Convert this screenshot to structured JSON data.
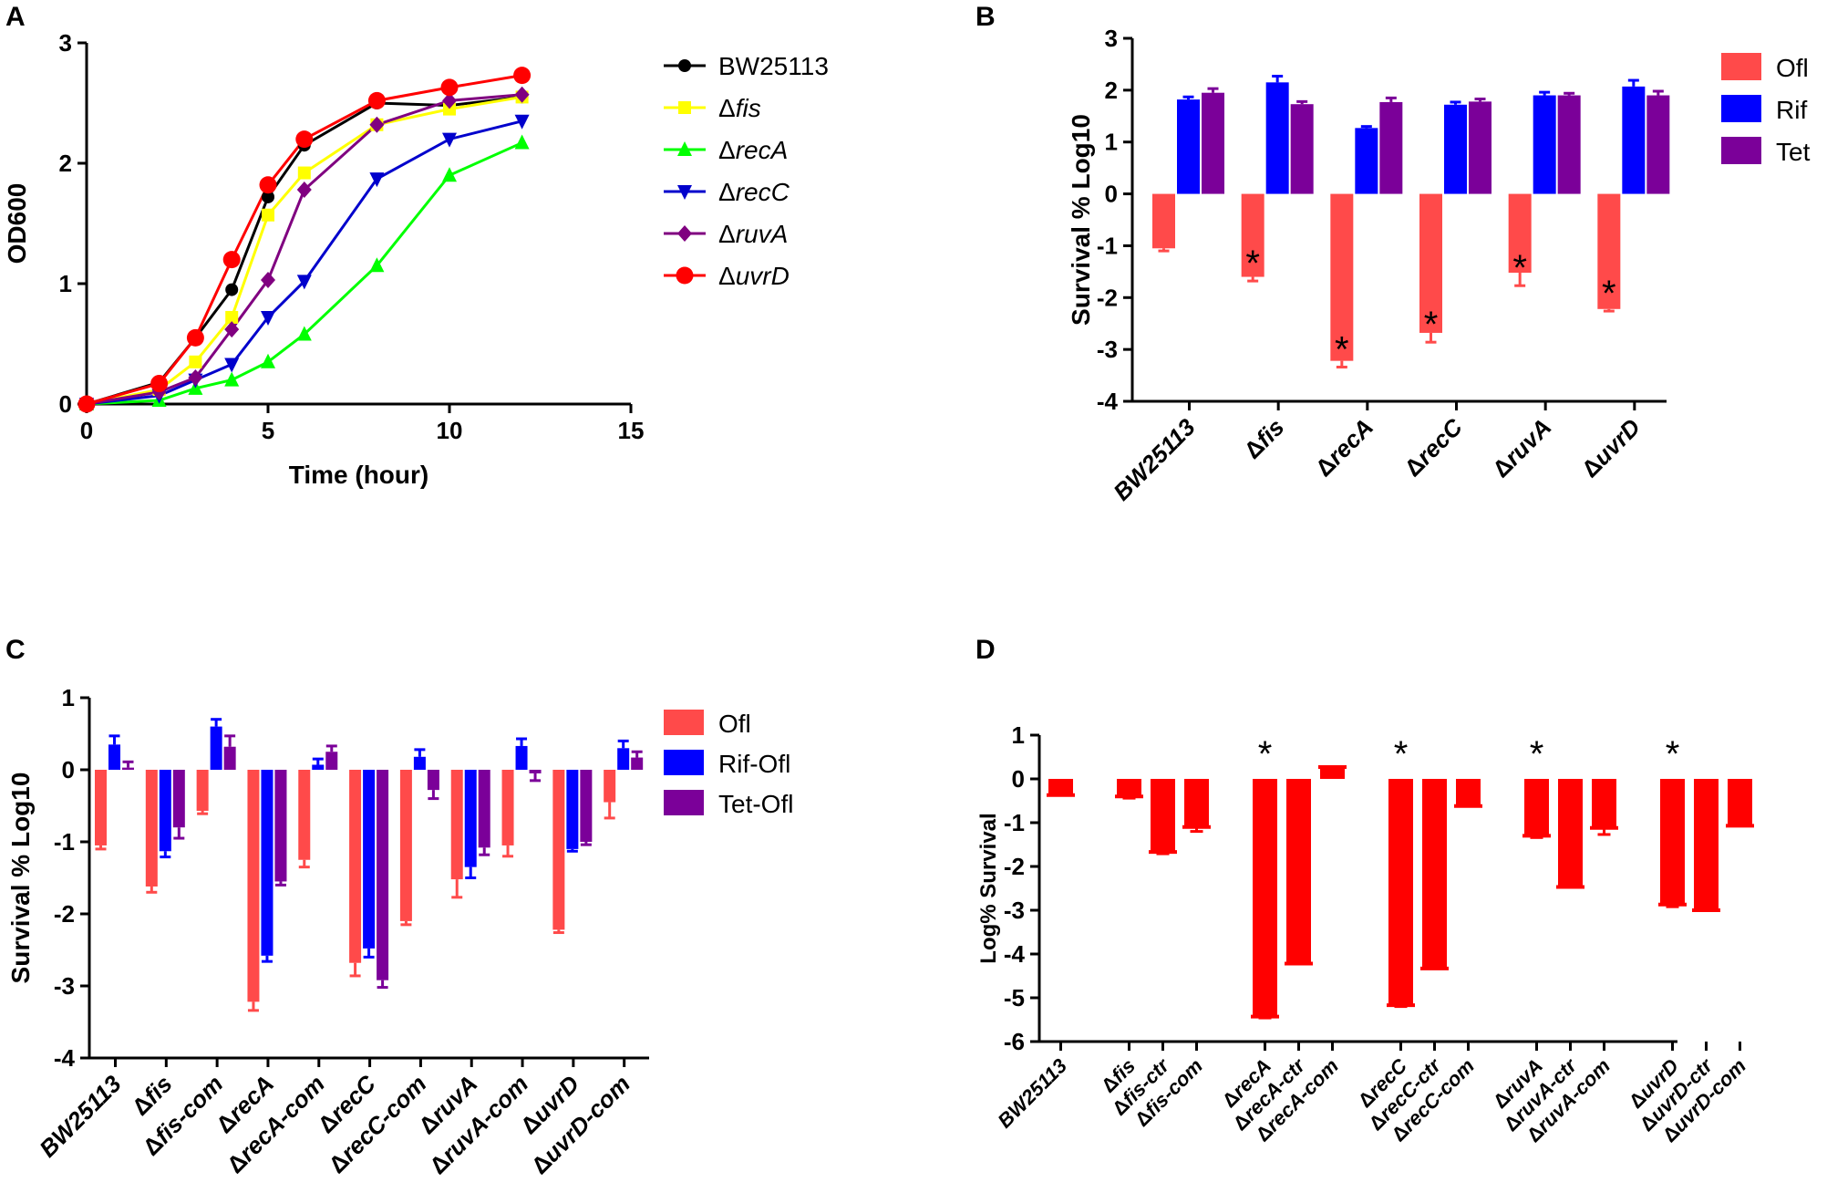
{
  "chart_data": [
    {
      "panel": "A",
      "type": "line",
      "xlabel": "Time (hour)",
      "ylabel": "OD600",
      "xlim": [
        0,
        15
      ],
      "ylim": [
        0,
        3
      ],
      "xticks": [
        "0",
        "5",
        "10",
        "15"
      ],
      "yticks": [
        "0",
        "1",
        "2",
        "3"
      ],
      "series": [
        {
          "name": "BW25113",
          "italic": false,
          "color": "#000000",
          "marker": "circle",
          "x": [
            0,
            2,
            3,
            4,
            5,
            6,
            8,
            10,
            12
          ],
          "y": [
            0,
            0.18,
            0.55,
            0.95,
            1.72,
            2.15,
            2.5,
            2.48,
            2.55
          ]
        },
        {
          "name": "Δfis",
          "italic": true,
          "color": "#ffff00",
          "marker": "square",
          "x": [
            0,
            2,
            3,
            4,
            5,
            6,
            8,
            10,
            12
          ],
          "y": [
            0,
            0.12,
            0.35,
            0.72,
            1.57,
            1.92,
            2.32,
            2.45,
            2.55
          ]
        },
        {
          "name": "ΔrecA",
          "italic": true,
          "color": "#00ff00",
          "marker": "triangle-up",
          "x": [
            0,
            2,
            3,
            4,
            5,
            6,
            8,
            10,
            12
          ],
          "y": [
            0,
            0.03,
            0.13,
            0.2,
            0.35,
            0.58,
            1.15,
            1.9,
            2.17
          ]
        },
        {
          "name": "ΔrecC",
          "italic": true,
          "color": "#0000cc",
          "marker": "triangle-down",
          "x": [
            0,
            2,
            3,
            4,
            5,
            6,
            8,
            10,
            12
          ],
          "y": [
            0,
            0.07,
            0.2,
            0.33,
            0.72,
            1.02,
            1.87,
            2.2,
            2.35
          ]
        },
        {
          "name": "ΔruvA",
          "italic": true,
          "color": "#800080",
          "marker": "diamond",
          "x": [
            0,
            2,
            3,
            4,
            5,
            6,
            8,
            10,
            12
          ],
          "y": [
            0,
            0.1,
            0.22,
            0.62,
            1.03,
            1.78,
            2.32,
            2.52,
            2.57
          ]
        },
        {
          "name": "ΔuvrD",
          "italic": true,
          "color": "#ff0000",
          "marker": "circle-large",
          "x": [
            0,
            2,
            3,
            4,
            5,
            6,
            8,
            10,
            12
          ],
          "y": [
            0,
            0.17,
            0.55,
            1.2,
            1.82,
            2.2,
            2.52,
            2.63,
            2.73
          ]
        }
      ]
    },
    {
      "panel": "B",
      "type": "bar",
      "ylabel": "Survival  % Log10",
      "ylim": [
        -4,
        3
      ],
      "yticks": [
        "-4",
        "-3",
        "-2",
        "-1",
        "0",
        "1",
        "2",
        "3"
      ],
      "categories": [
        "BW25113",
        "Δfis",
        "ΔrecA",
        "ΔrecC",
        "ΔruvA",
        "ΔuvrD"
      ],
      "series": [
        {
          "name": "Ofl",
          "color": "#ff4a4a",
          "values": [
            -1.05,
            -1.6,
            -3.22,
            -2.68,
            -1.52,
            -2.22
          ],
          "errors": [
            0.05,
            0.08,
            0.12,
            0.18,
            0.25,
            0.04
          ]
        },
        {
          "name": "Rif",
          "color": "#0000ff",
          "values": [
            1.82,
            2.15,
            1.27,
            1.72,
            1.9,
            2.07
          ],
          "errors": [
            0.05,
            0.12,
            0.03,
            0.05,
            0.06,
            0.12
          ]
        },
        {
          "name": "Tet",
          "color": "#7b0099",
          "values": [
            1.95,
            1.73,
            1.77,
            1.78,
            1.9,
            1.9
          ],
          "errors": [
            0.08,
            0.05,
            0.08,
            0.05,
            0.04,
            0.08
          ]
        }
      ],
      "significant": [
        "",
        "*",
        "*",
        "*",
        "*",
        "*"
      ]
    },
    {
      "panel": "C",
      "type": "bar",
      "ylabel": "Survival  % Log10",
      "ylim": [
        -4,
        1
      ],
      "yticks": [
        "-4",
        "-3",
        "-2",
        "-1",
        "0",
        "1"
      ],
      "categories": [
        "BW25113",
        "Δfis",
        "Δfis-com",
        "ΔrecA",
        "ΔrecA-com",
        "ΔrecC",
        "ΔrecC-com",
        "ΔruvA",
        "ΔruvA-com",
        "ΔuvrD",
        "ΔuvrD-com"
      ],
      "series": [
        {
          "name": "Ofl",
          "color": "#ff4a4a",
          "values": [
            -1.05,
            -1.62,
            -0.57,
            -3.22,
            -1.25,
            -2.68,
            -2.1,
            -1.52,
            -1.05,
            -2.22,
            -0.45
          ],
          "errors": [
            0.05,
            0.08,
            0.04,
            0.12,
            0.1,
            0.18,
            0.05,
            0.25,
            0.15,
            0.04,
            0.22
          ]
        },
        {
          "name": "Rif-Ofl",
          "color": "#0000ff",
          "values": [
            0.35,
            -1.13,
            0.6,
            -2.58,
            0.07,
            -2.48,
            0.18,
            -1.35,
            0.33,
            -1.1,
            0.3
          ],
          "errors": [
            0.12,
            0.08,
            0.1,
            0.08,
            0.08,
            0.12,
            0.1,
            0.15,
            0.1,
            0.03,
            0.1
          ]
        },
        {
          "name": "Tet-Ofl",
          "color": "#7b0099",
          "values": [
            0.03,
            -0.8,
            0.32,
            -1.55,
            0.25,
            -2.92,
            -0.28,
            -1.08,
            -0.05,
            -1.0,
            0.17
          ],
          "errors": [
            0.08,
            0.15,
            0.15,
            0.05,
            0.08,
            0.1,
            0.12,
            0.1,
            0.1,
            0.04,
            0.08
          ]
        }
      ]
    },
    {
      "panel": "D",
      "type": "bar",
      "ylabel": "Log% Survival",
      "ylim": [
        -6,
        1
      ],
      "yticks": [
        "-6",
        "-5",
        "-4",
        "-3",
        "-2",
        "-1",
        "0",
        "1"
      ],
      "color": "#ff0000",
      "groups": [
        {
          "categories": [
            "BW25113"
          ],
          "values": [
            -0.37
          ],
          "errors": [
            0.0
          ],
          "significant": [
            ""
          ]
        },
        {
          "categories": [
            "Δfis",
            "Δfis-ctr",
            "Δfis-com"
          ],
          "values": [
            -0.4,
            -1.67,
            -1.1
          ],
          "errors": [
            0.04,
            0.04,
            0.1
          ],
          "significant": [
            "",
            "",
            ""
          ]
        },
        {
          "categories": [
            "ΔrecA",
            "ΔrecA-ctr",
            "ΔrecA-com"
          ],
          "values": [
            -5.43,
            -4.22,
            0.27
          ],
          "errors": [
            0.03,
            0.0,
            0.0
          ],
          "significant": [
            "*",
            "",
            ""
          ]
        },
        {
          "categories": [
            "ΔrecC",
            "ΔrecC-ctr",
            "ΔrecC-com"
          ],
          "values": [
            -5.17,
            -4.33,
            -0.62
          ],
          "errors": [
            0.03,
            0.0,
            0.0
          ],
          "significant": [
            "*",
            "",
            ""
          ]
        },
        {
          "categories": [
            "ΔruvA",
            "ΔruvA-ctr",
            "ΔruvA-com"
          ],
          "values": [
            -1.3,
            -2.47,
            -1.12
          ],
          "errors": [
            0.04,
            0.0,
            0.15
          ],
          "significant": [
            "*",
            "",
            ""
          ]
        },
        {
          "categories": [
            "ΔuvrD",
            "ΔuvrD-ctr",
            "ΔuvrD-com"
          ],
          "values": [
            -2.87,
            -3.0,
            -1.07
          ],
          "errors": [
            0.05,
            0.0,
            0.0
          ],
          "significant": [
            "*",
            "",
            ""
          ]
        }
      ]
    }
  ]
}
